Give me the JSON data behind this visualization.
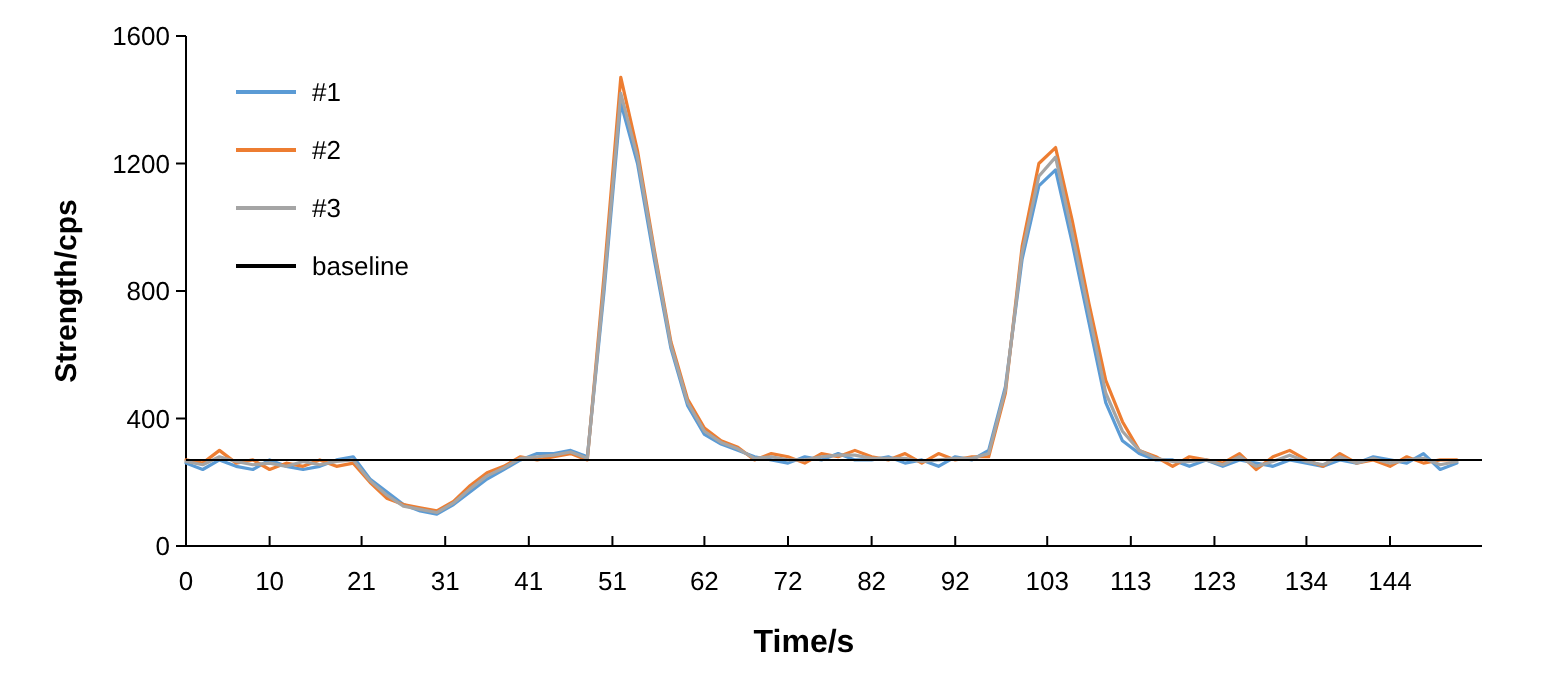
{
  "chart_data": {
    "type": "line",
    "xlabel": "Time/s",
    "ylabel": "Strength/cps",
    "x": [
      0,
      2,
      4,
      6,
      8,
      10,
      12,
      14,
      16,
      18,
      20,
      22,
      24,
      26,
      28,
      30,
      32,
      34,
      36,
      38,
      40,
      42,
      44,
      46,
      48,
      50,
      52,
      54,
      56,
      58,
      60,
      62,
      64,
      66,
      68,
      70,
      72,
      74,
      76,
      78,
      80,
      82,
      84,
      86,
      88,
      90,
      92,
      94,
      96,
      98,
      100,
      102,
      104,
      106,
      108,
      110,
      112,
      114,
      116,
      118,
      120,
      122,
      124,
      126,
      128,
      130,
      132,
      134,
      136,
      138,
      140,
      142,
      144,
      146,
      148,
      150,
      152
    ],
    "series": [
      {
        "name": "#1",
        "color": "#5b9bd5",
        "values": [
          260,
          240,
          270,
          250,
          240,
          270,
          250,
          240,
          250,
          270,
          280,
          210,
          170,
          130,
          110,
          100,
          130,
          170,
          210,
          240,
          270,
          290,
          290,
          300,
          280,
          800,
          1390,
          1200,
          900,
          620,
          440,
          350,
          320,
          300,
          280,
          270,
          260,
          280,
          270,
          290,
          270,
          270,
          280,
          260,
          270,
          250,
          280,
          270,
          300,
          500,
          900,
          1130,
          1180,
          950,
          700,
          450,
          330,
          290,
          270,
          270,
          250,
          270,
          250,
          270,
          260,
          250,
          270,
          260,
          250,
          270,
          260,
          280,
          270,
          260,
          290,
          240,
          260
        ]
      },
      {
        "name": "#2",
        "color": "#ed7d31",
        "values": [
          270,
          260,
          300,
          260,
          270,
          240,
          260,
          250,
          270,
          250,
          260,
          200,
          150,
          130,
          120,
          110,
          140,
          190,
          230,
          250,
          280,
          270,
          280,
          290,
          270,
          850,
          1470,
          1240,
          930,
          640,
          460,
          370,
          330,
          310,
          270,
          290,
          280,
          260,
          290,
          280,
          300,
          280,
          270,
          290,
          260,
          290,
          270,
          280,
          280,
          480,
          940,
          1200,
          1250,
          1020,
          760,
          520,
          390,
          300,
          280,
          250,
          280,
          270,
          260,
          290,
          240,
          280,
          300,
          270,
          250,
          290,
          260,
          270,
          250,
          280,
          260,
          270,
          270
        ]
      },
      {
        "name": "#3",
        "color": "#a5a5a5",
        "values": [
          265,
          255,
          280,
          265,
          255,
          260,
          250,
          265,
          255,
          265,
          270,
          205,
          160,
          125,
          115,
          105,
          135,
          180,
          220,
          245,
          275,
          280,
          285,
          295,
          275,
          820,
          1420,
          1220,
          920,
          630,
          450,
          360,
          325,
          305,
          275,
          280,
          270,
          270,
          280,
          285,
          285,
          275,
          275,
          275,
          265,
          270,
          275,
          275,
          290,
          490,
          920,
          1160,
          1220,
          980,
          730,
          480,
          360,
          300,
          275,
          265,
          265,
          270,
          255,
          280,
          250,
          265,
          285,
          265,
          255,
          280,
          260,
          275,
          260,
          270,
          275,
          255,
          265
        ]
      }
    ],
    "xlim": [
      0,
      155
    ],
    "xticks": [
      0,
      10,
      21,
      31,
      41,
      51,
      62,
      72,
      82,
      92,
      103,
      113,
      123,
      134,
      144
    ],
    "ylim": [
      0,
      1600
    ],
    "yticks": [
      0,
      400,
      800,
      1200,
      1600
    ],
    "ref_lines": [
      {
        "axis": "y",
        "value": 270,
        "label": "baseline",
        "color": "#000000"
      }
    ],
    "legend": "top left",
    "grid": false,
    "line_style": "solid"
  }
}
